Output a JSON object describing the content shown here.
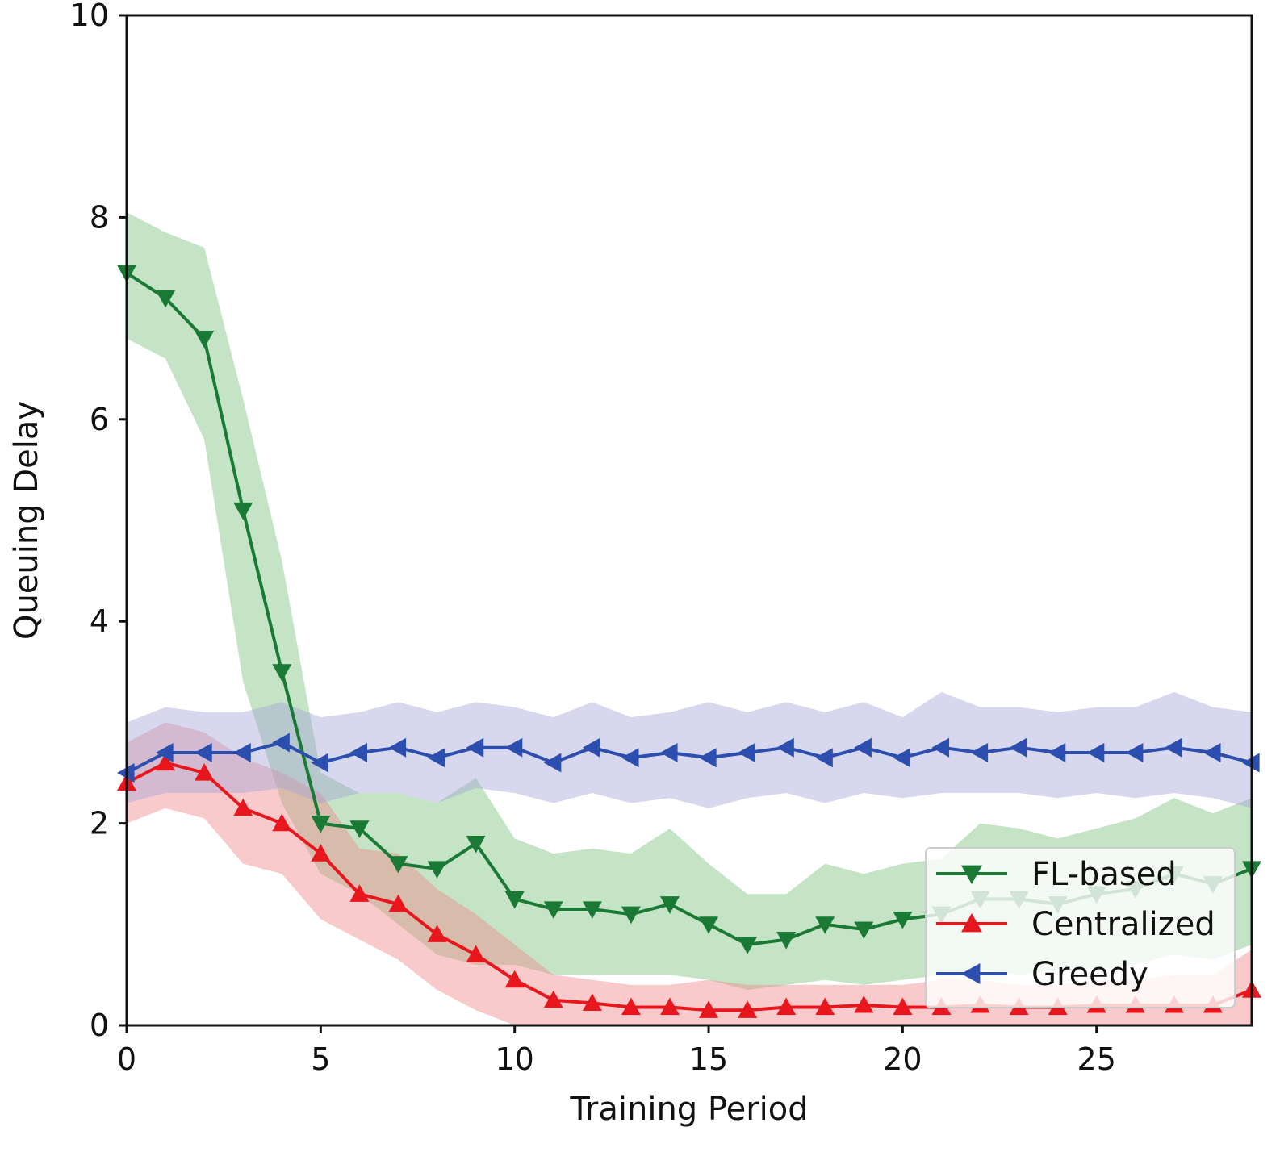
{
  "chart_data": {
    "type": "line",
    "xlabel": "Training Period",
    "ylabel": "Queuing Delay",
    "xlim": [
      0,
      29
    ],
    "ylim": [
      0,
      10
    ],
    "xticks": [
      0,
      5,
      10,
      15,
      20,
      25
    ],
    "yticks": [
      0,
      2,
      4,
      6,
      8,
      10
    ],
    "legend_position": "lower-right",
    "x": [
      0,
      1,
      2,
      3,
      4,
      5,
      6,
      7,
      8,
      9,
      10,
      11,
      12,
      13,
      14,
      15,
      16,
      17,
      18,
      19,
      20,
      21,
      22,
      23,
      24,
      25,
      26,
      27,
      28,
      29
    ],
    "series": [
      {
        "name": "FL-based",
        "color": "#1a7a35",
        "band_color": "#7cc47f",
        "marker": "triangle-down",
        "values": [
          7.45,
          7.2,
          6.8,
          5.1,
          3.5,
          2.0,
          1.95,
          1.6,
          1.55,
          1.8,
          1.25,
          1.15,
          1.15,
          1.1,
          1.2,
          1.0,
          0.8,
          0.85,
          1.0,
          0.95,
          1.05,
          1.1,
          1.25,
          1.25,
          1.2,
          1.3,
          1.35,
          1.5,
          1.4,
          1.55
        ],
        "lower": [
          6.8,
          6.6,
          5.8,
          3.4,
          2.2,
          1.5,
          1.3,
          1.0,
          0.7,
          0.6,
          0.6,
          0.5,
          0.5,
          0.5,
          0.5,
          0.45,
          0.35,
          0.4,
          0.45,
          0.4,
          0.45,
          0.5,
          0.55,
          0.5,
          0.55,
          0.55,
          0.6,
          0.7,
          0.65,
          0.8
        ],
        "upper": [
          8.05,
          7.85,
          7.7,
          6.2,
          4.6,
          2.5,
          2.3,
          2.3,
          2.2,
          2.45,
          1.85,
          1.7,
          1.75,
          1.7,
          1.95,
          1.6,
          1.3,
          1.3,
          1.6,
          1.5,
          1.6,
          1.65,
          2.0,
          1.95,
          1.85,
          1.95,
          2.05,
          2.25,
          2.1,
          2.25
        ]
      },
      {
        "name": "Centralized",
        "color": "#e8171d",
        "band_color": "#f08a8c",
        "marker": "triangle-up",
        "values": [
          2.4,
          2.6,
          2.5,
          2.15,
          2.0,
          1.7,
          1.3,
          1.2,
          0.9,
          0.7,
          0.45,
          0.25,
          0.22,
          0.18,
          0.18,
          0.15,
          0.15,
          0.18,
          0.18,
          0.2,
          0.18,
          0.18,
          0.2,
          0.18,
          0.18,
          0.2,
          0.2,
          0.2,
          0.2,
          0.35
        ],
        "lower": [
          2.0,
          2.15,
          2.05,
          1.6,
          1.5,
          1.05,
          0.85,
          0.65,
          0.35,
          0.15,
          0.0,
          0.0,
          0.0,
          0.0,
          0.0,
          0.0,
          0.0,
          0.0,
          0.0,
          0.0,
          0.0,
          0.0,
          0.0,
          0.0,
          0.0,
          0.0,
          0.0,
          0.0,
          0.0,
          0.0
        ],
        "upper": [
          2.8,
          3.0,
          2.9,
          2.65,
          2.5,
          2.3,
          1.75,
          1.7,
          1.35,
          1.1,
          0.8,
          0.5,
          0.45,
          0.4,
          0.4,
          0.45,
          0.4,
          0.4,
          0.4,
          0.4,
          0.4,
          0.45,
          0.45,
          0.4,
          0.4,
          0.45,
          0.45,
          0.5,
          0.5,
          0.75
        ]
      },
      {
        "name": "Greedy",
        "color": "#2b4eaf",
        "band_color": "#a6a6d8",
        "marker": "triangle-left",
        "values": [
          2.5,
          2.7,
          2.7,
          2.7,
          2.8,
          2.6,
          2.7,
          2.75,
          2.65,
          2.75,
          2.75,
          2.6,
          2.75,
          2.65,
          2.7,
          2.65,
          2.7,
          2.75,
          2.65,
          2.75,
          2.65,
          2.75,
          2.7,
          2.75,
          2.7,
          2.7,
          2.7,
          2.75,
          2.7,
          2.6
        ],
        "lower": [
          2.2,
          2.3,
          2.3,
          2.3,
          2.35,
          2.2,
          2.3,
          2.3,
          2.2,
          2.35,
          2.3,
          2.2,
          2.3,
          2.2,
          2.25,
          2.15,
          2.25,
          2.3,
          2.2,
          2.3,
          2.25,
          2.3,
          2.3,
          2.3,
          2.25,
          2.3,
          2.25,
          2.3,
          2.25,
          2.15
        ],
        "upper": [
          3.0,
          3.15,
          3.1,
          3.1,
          3.2,
          3.05,
          3.1,
          3.2,
          3.1,
          3.2,
          3.15,
          3.05,
          3.2,
          3.05,
          3.1,
          3.2,
          3.1,
          3.2,
          3.1,
          3.2,
          3.05,
          3.3,
          3.15,
          3.15,
          3.1,
          3.15,
          3.15,
          3.3,
          3.15,
          3.1
        ]
      }
    ]
  }
}
